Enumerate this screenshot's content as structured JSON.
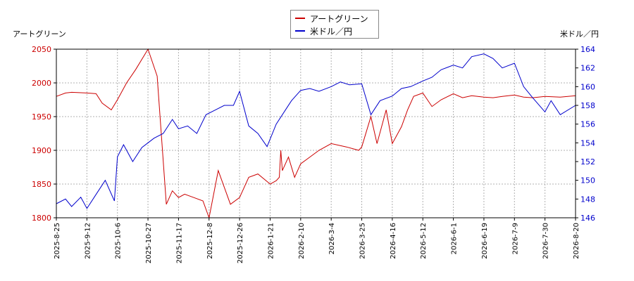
{
  "chart_data": {
    "type": "line",
    "x_ticks": [
      "2025-8-25",
      "2025-9-12",
      "2025-10-6",
      "2025-10-27",
      "2025-11-17",
      "2025-12-8",
      "2025-12-26",
      "2026-1-21",
      "2026-2-10",
      "2026-3-4",
      "2026-3-25",
      "2026-4-16",
      "2026-5-12",
      "2026-6-1",
      "2026-6-19",
      "2026-7-9",
      "2026-7-30",
      "2026-8-20"
    ],
    "y_left": {
      "label": "アートグリーン",
      "lim": [
        1800,
        2050
      ],
      "ticks": [
        1800,
        1850,
        1900,
        1950,
        2000,
        2050
      ]
    },
    "y_right": {
      "label": "米ドル／円",
      "lim": [
        146,
        164
      ],
      "ticks": [
        146,
        148,
        150,
        152,
        154,
        156,
        158,
        160,
        162,
        164
      ]
    },
    "grid": true,
    "legend": "top-center",
    "series": [
      {
        "name": "アートグリーン",
        "axis": "left",
        "color": "#cc0000",
        "x_tick_index": [
          0,
          0.3,
          0.5,
          1.0,
          1.3,
          1.5,
          1.8,
          2.0,
          2.3,
          2.6,
          3.0,
          3.3,
          3.6,
          3.8,
          4.0,
          4.2,
          4.5,
          4.8,
          5.0,
          5.3,
          5.7,
          6.0,
          6.3,
          6.6,
          7.0,
          7.2,
          7.3,
          7.35,
          7.4,
          7.6,
          7.8,
          8.0,
          8.3,
          8.6,
          9.0,
          9.5,
          9.9,
          10.0,
          10.3,
          10.5,
          10.8,
          11.0,
          11.3,
          11.5,
          11.7,
          12.0,
          12.3,
          12.6,
          13.0,
          13.3,
          13.6,
          14.0,
          14.3,
          14.6,
          15.0,
          15.3,
          15.6,
          16.0,
          16.5,
          17.0
        ],
        "values": [
          1980,
          1985,
          1986,
          1985,
          1984,
          1970,
          1960,
          1975,
          2000,
          2020,
          2050,
          2010,
          1820,
          1840,
          1830,
          1835,
          1830,
          1825,
          1800,
          1870,
          1820,
          1830,
          1860,
          1865,
          1850,
          1855,
          1860,
          1900,
          1870,
          1890,
          1860,
          1880,
          1890,
          1900,
          1910,
          1905,
          1900,
          1905,
          1950,
          1910,
          1960,
          1910,
          1935,
          1960,
          1980,
          1985,
          1965,
          1975,
          1984,
          1978,
          1981,
          1979,
          1978,
          1980,
          1982,
          1979,
          1978,
          1980,
          1979,
          1981
        ]
      },
      {
        "name": "米ドル／円",
        "axis": "right",
        "color": "#0000cc",
        "x_tick_index": [
          0,
          0.3,
          0.5,
          0.8,
          1.0,
          1.3,
          1.6,
          1.9,
          2.0,
          2.2,
          2.5,
          2.8,
          3.0,
          3.2,
          3.5,
          3.8,
          4.0,
          4.3,
          4.6,
          4.9,
          5.2,
          5.5,
          5.8,
          6.0,
          6.3,
          6.6,
          6.9,
          7.2,
          7.5,
          7.7,
          8.0,
          8.3,
          8.6,
          9.0,
          9.3,
          9.6,
          10.0,
          10.3,
          10.6,
          11.0,
          11.3,
          11.6,
          12.0,
          12.3,
          12.6,
          13.0,
          13.3,
          13.6,
          14.0,
          14.3,
          14.6,
          15.0,
          15.3,
          15.6,
          16.0,
          16.2,
          16.5,
          17.0
        ],
        "values": [
          147.5,
          148.0,
          147.2,
          148.2,
          147.0,
          148.5,
          150.0,
          147.8,
          152.5,
          153.8,
          152.0,
          153.5,
          154.0,
          154.5,
          155.0,
          156.5,
          155.5,
          155.8,
          155.0,
          157.0,
          157.5,
          158.0,
          158.0,
          159.5,
          155.8,
          155.0,
          153.6,
          156.0,
          157.5,
          158.5,
          159.6,
          159.8,
          159.5,
          160.0,
          160.5,
          160.2,
          160.3,
          157.0,
          158.5,
          159.0,
          159.8,
          160.0,
          160.6,
          161.0,
          161.8,
          162.3,
          162.0,
          163.2,
          163.5,
          163.0,
          162.0,
          162.5,
          160.0,
          158.8,
          157.3,
          158.5,
          157.0,
          158.0
        ]
      }
    ]
  }
}
